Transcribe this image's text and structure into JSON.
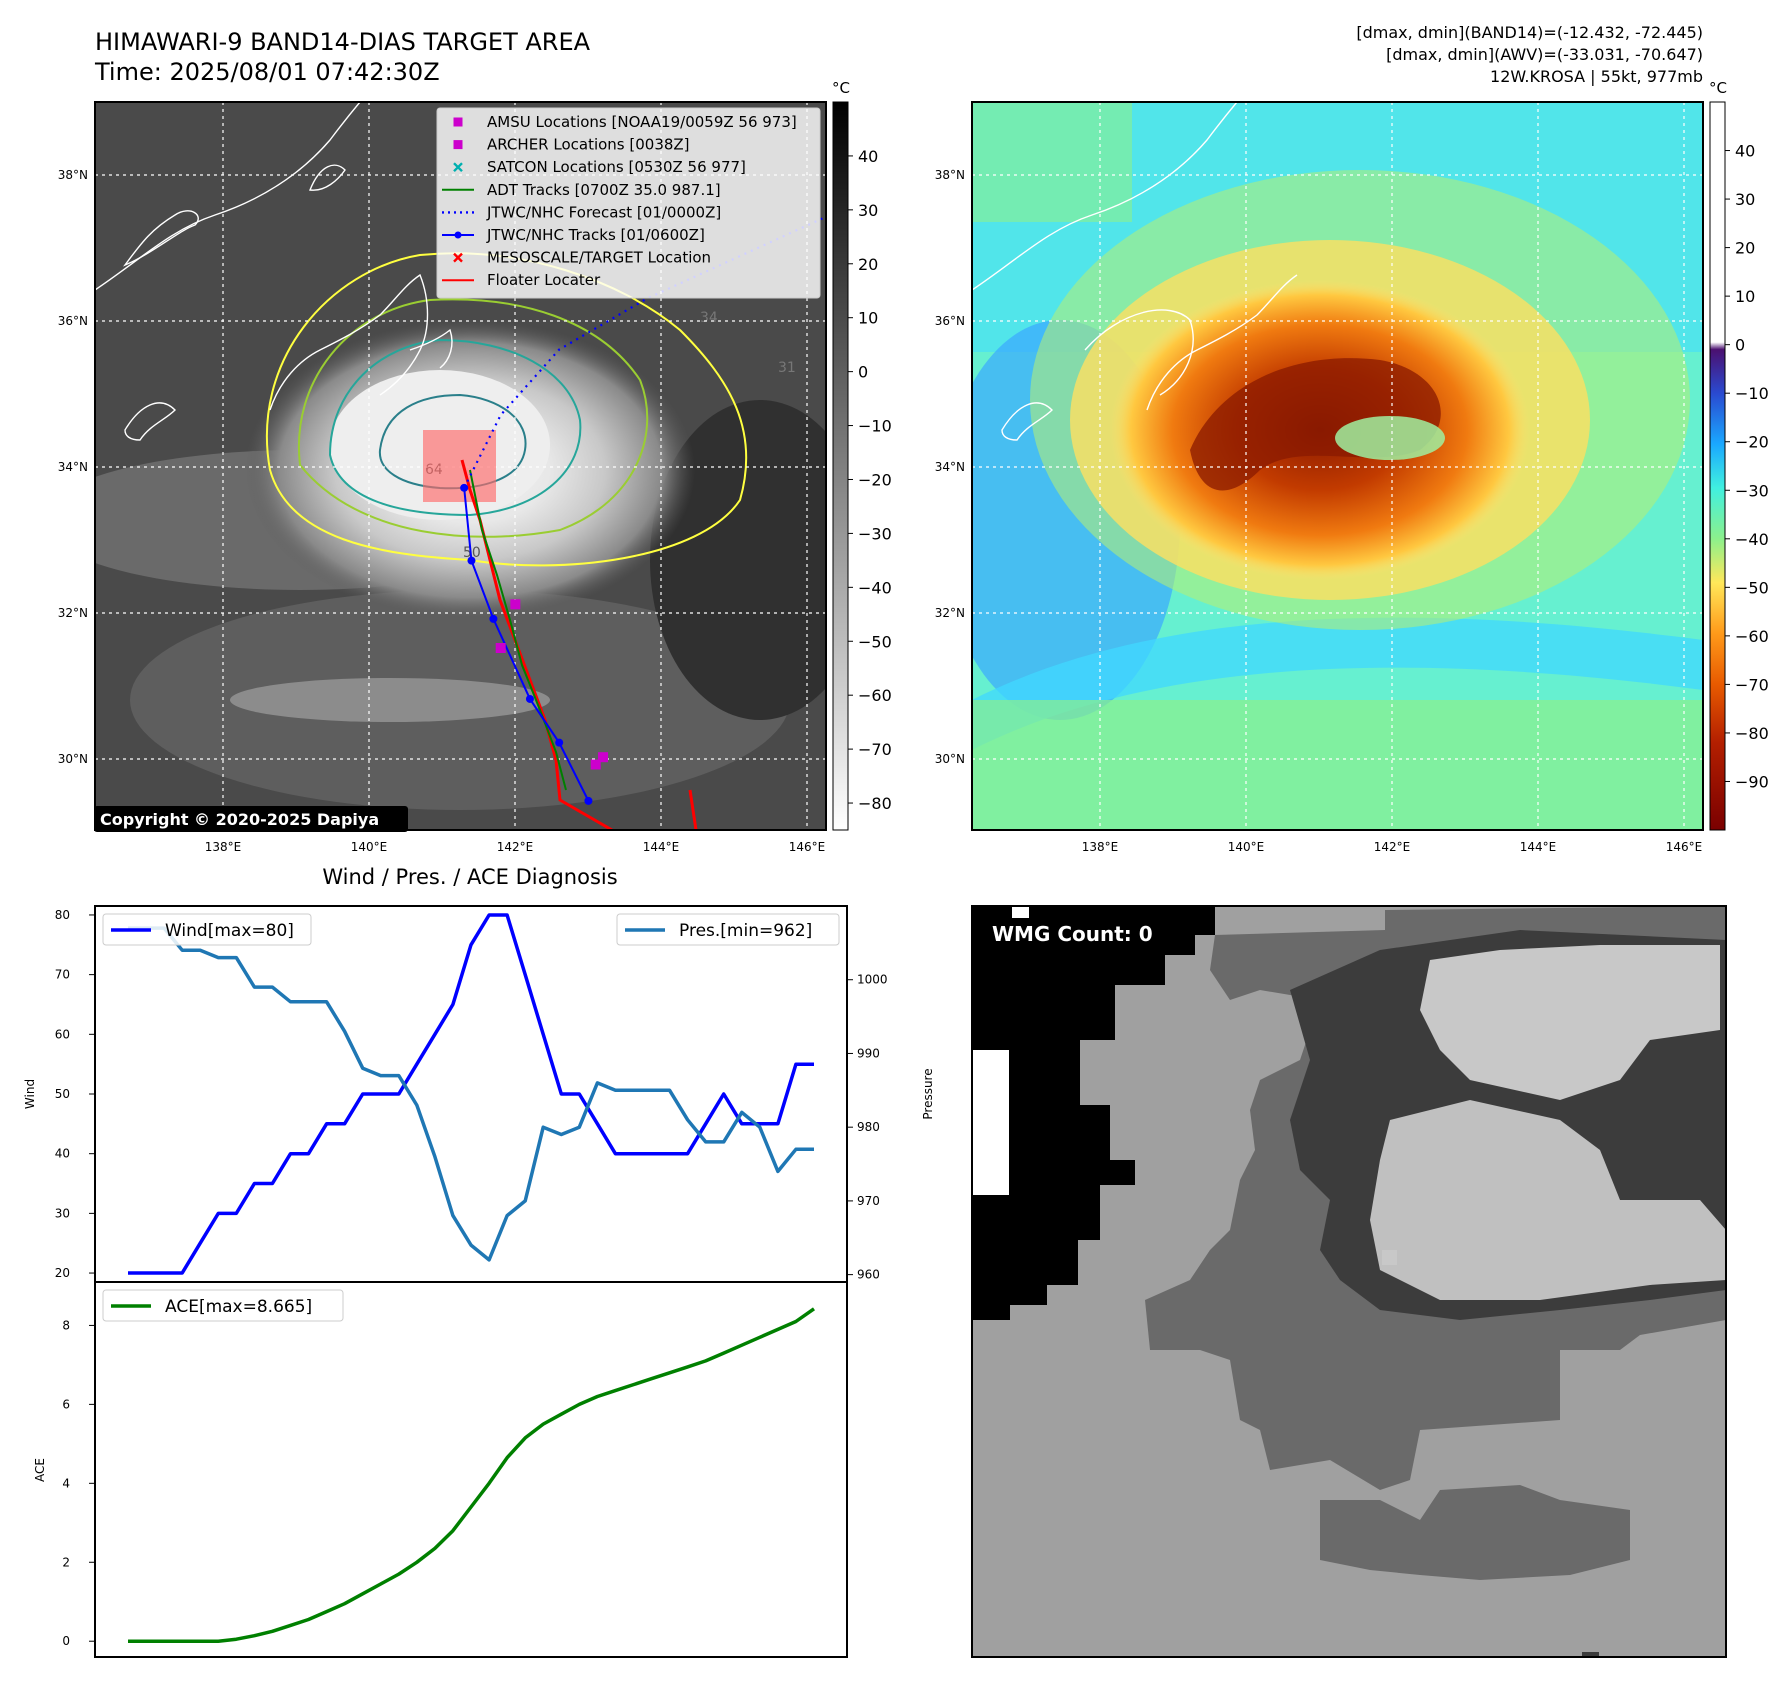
{
  "header": {
    "title": "HIMAWARI-9 BAND14-DIAS TARGET AREA",
    "time": "Time: 2025/08/01 07:42:30Z",
    "info_line1": "[dmax, dmin](BAND14)=(-12.432, -72.445)",
    "info_line2": "[dmax, dmin](AWV)=(-33.031, -70.647)",
    "info_line3": "12W.KROSA | 55kt, 977mb"
  },
  "maps": {
    "lon_ticks": [
      "138°E",
      "140°E",
      "142°E",
      "144°E",
      "146°E"
    ],
    "lat_ticks": [
      "38°N",
      "36°N",
      "34°N",
      "32°N",
      "30°N"
    ],
    "lon_range": [
      136.25,
      146.25
    ],
    "lat_range": [
      29.0,
      39.0
    ],
    "copyright": "Copyright © 2020-2025 Dapiya",
    "contour_labels": [
      "64",
      "50",
      "31",
      "34"
    ],
    "ir_colorbar": {
      "unit": "°C",
      "ticks": [
        40,
        30,
        20,
        10,
        0,
        -10,
        -20,
        -30,
        -40,
        -50,
        -60,
        -70,
        -80
      ],
      "range": [
        -85,
        50
      ]
    },
    "awv_colorbar": {
      "unit": "°C",
      "ticks": [
        40,
        30,
        20,
        10,
        0,
        -10,
        -20,
        -30,
        -40,
        -50,
        -60,
        -70,
        -80,
        -90
      ],
      "range": [
        -100,
        50
      ]
    },
    "legend": [
      {
        "label": "AMSU Locations [NOAA19/0059Z 56 973]",
        "marker": "square",
        "color": "#cc00cc"
      },
      {
        "label": "ARCHER Locations [0038Z]",
        "marker": "square",
        "color": "#cc00cc"
      },
      {
        "label": "SATCON Locations [0530Z 56 977]",
        "marker": "x",
        "color": "#00b0b0"
      },
      {
        "label": "ADT Tracks [0700Z 35.0 987.1]",
        "marker": "line",
        "color": "#008000"
      },
      {
        "label": "JTWC/NHC Forecast [01/0000Z]",
        "marker": "dotted",
        "color": "#0000ff"
      },
      {
        "label": "JTWC/NHC Tracks [01/0600Z]",
        "marker": "line-dot",
        "color": "#0000ff"
      },
      {
        "label": "MESOSCALE/TARGET Location",
        "marker": "x",
        "color": "#ff0000"
      },
      {
        "label": "Floater Locater",
        "marker": "line",
        "color": "#ff0000"
      }
    ],
    "jtwc_track": [
      [
        141.3,
        33.7
      ],
      [
        141.4,
        32.7
      ],
      [
        141.7,
        31.9
      ],
      [
        142.2,
        30.8
      ],
      [
        142.6,
        30.2
      ],
      [
        143.0,
        29.4
      ]
    ],
    "jtwc_forecast": [
      [
        141.3,
        33.7
      ],
      [
        141.8,
        34.7
      ],
      [
        142.6,
        35.6
      ],
      [
        143.8,
        36.3
      ],
      [
        146.2,
        37.4
      ]
    ],
    "archer_locations": [
      [
        142.0,
        32.1
      ],
      [
        141.8,
        31.5
      ],
      [
        143.2,
        30.0
      ],
      [
        143.1,
        29.9
      ]
    ]
  },
  "diagnosis": {
    "title": "Wind / Pres. / ACE Diagnosis",
    "wind_ylabel": "Wind",
    "pres_ylabel": "Pressure",
    "ace_ylabel": "ACE",
    "wind_legend": "Wind[max=80]",
    "pres_legend": "Pres.[min=962]",
    "ace_legend": "ACE[max=8.665]"
  },
  "chart_data": [
    {
      "type": "line",
      "title": "Wind / Pres. / ACE Diagnosis",
      "x": [
        0,
        1,
        2,
        3,
        4,
        5,
        6,
        7,
        8,
        9,
        10,
        11,
        12,
        13,
        14,
        15,
        16,
        17,
        18,
        19,
        20,
        21,
        22,
        23,
        24,
        25,
        26,
        27,
        28,
        29,
        30,
        31,
        32,
        33,
        34,
        35,
        36,
        37,
        38
      ],
      "ylim_left": [
        18.5,
        81.5
      ],
      "ylim_right": [
        959,
        1010
      ],
      "yticks_left": [
        20,
        30,
        40,
        50,
        60,
        70,
        80
      ],
      "yticks_right": [
        960,
        970,
        980,
        990,
        1000
      ],
      "series": [
        {
          "name": "Wind[max=80]",
          "axis": "left",
          "color": "#0000ff",
          "values": [
            20,
            20,
            20,
            20,
            25,
            30,
            30,
            35,
            35,
            40,
            40,
            45,
            45,
            50,
            50,
            50,
            55,
            60,
            65,
            75,
            80,
            80,
            70,
            60,
            50,
            50,
            45,
            40,
            40,
            40,
            40,
            40,
            45,
            50,
            45,
            45,
            45,
            55,
            55
          ]
        },
        {
          "name": "Pres.[min=962]",
          "axis": "left",
          "color": "#1f77b4",
          "secondary_axis": true,
          "values": [
            1007,
            1007,
            1007,
            1004,
            1004,
            1003,
            1003,
            999,
            999,
            997,
            997,
            997,
            993,
            988,
            987,
            987,
            983,
            976,
            968,
            964,
            962,
            968,
            970,
            980,
            979,
            980,
            986,
            985,
            985,
            985,
            985,
            981,
            978,
            978,
            982,
            980,
            974,
            977,
            977
          ]
        }
      ]
    },
    {
      "type": "line",
      "x": [
        0,
        1,
        2,
        3,
        4,
        5,
        6,
        7,
        8,
        9,
        10,
        11,
        12,
        13,
        14,
        15,
        16,
        17,
        18,
        19,
        20,
        21,
        22,
        23,
        24,
        25,
        26,
        27,
        28,
        29,
        30,
        31,
        32,
        33,
        34,
        35,
        36,
        37,
        38
      ],
      "ylim": [
        -0.4,
        9.1
      ],
      "yticks": [
        0,
        2,
        4,
        6,
        8
      ],
      "series": [
        {
          "name": "ACE[max=8.665]",
          "color": "#008000",
          "values": [
            0,
            0,
            0,
            0,
            0,
            0,
            0.05,
            0.14,
            0.25,
            0.4,
            0.55,
            0.75,
            0.95,
            1.2,
            1.45,
            1.7,
            2.0,
            2.35,
            2.8,
            3.4,
            4.0,
            4.65,
            5.15,
            5.5,
            5.75,
            6.0,
            6.2,
            6.35,
            6.5,
            6.65,
            6.8,
            6.95,
            7.1,
            7.3,
            7.5,
            7.7,
            7.9,
            8.1,
            8.42
          ]
        }
      ]
    }
  ],
  "wmg": {
    "count_label": "WMG Count: 0"
  }
}
